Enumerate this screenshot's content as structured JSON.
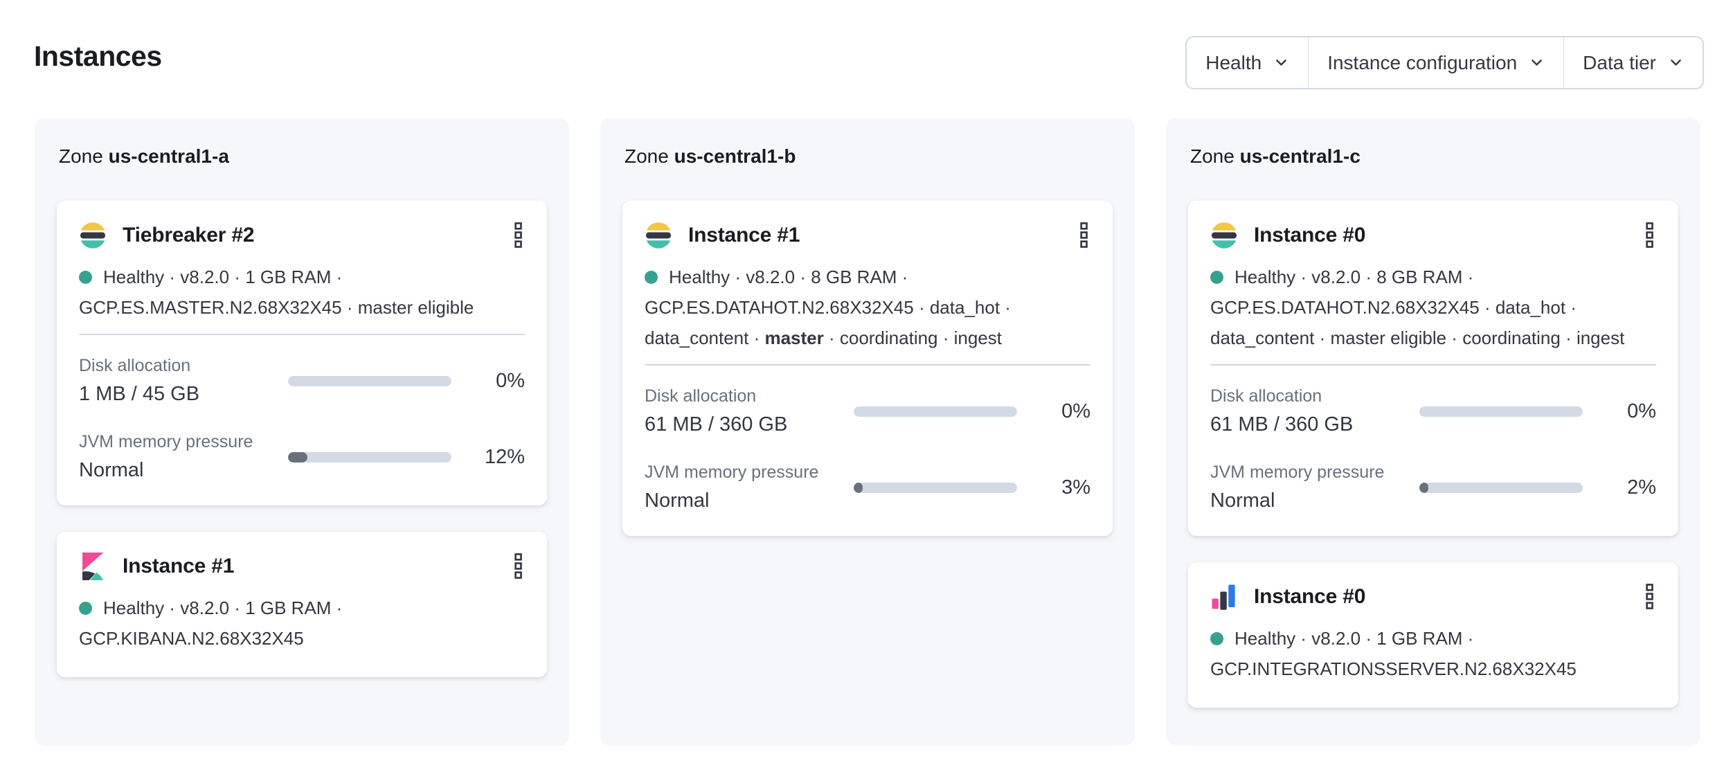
{
  "page": {
    "title": "Instances"
  },
  "filters": [
    {
      "label": "Health"
    },
    {
      "label": "Instance configuration"
    },
    {
      "label": "Data tier"
    }
  ],
  "icons": {
    "filter_dropdown": "chevron-down",
    "card_menu": "boxes-vertical",
    "health_status": "dot"
  },
  "colors": {
    "text_primary": "#1A1C21",
    "text_secondary": "#343741",
    "text_subdued": "#69707D",
    "border": "#D3DAE6",
    "panel_bg": "#F5F7FB",
    "card_bg": "#FFFFFF",
    "healthy_dot": "#37A18F",
    "bar_track": "#D3DAE6",
    "bar_fill": "#69707D",
    "logo_yellow": "#F5C546",
    "logo_dark": "#343741",
    "logo_teal": "#45BFAD",
    "logo_pink": "#EF4C98",
    "logo_blue": "#2D7CE0"
  },
  "zones": [
    {
      "prefix": "Zone",
      "name": "us-central1-a",
      "cards": [
        {
          "product": "elasticsearch",
          "title": "Tiebreaker #2",
          "meta_line1": "Healthy · v8.2.0 · 1 GB RAM ·",
          "meta_line2": "GCP.ES.MASTER.N2.68X32X45 · master eligible",
          "metrics": [
            {
              "label": "Disk allocation",
              "value": "1 MB / 45 GB",
              "percent": 0,
              "percent_label": "0%"
            },
            {
              "label": "JVM memory pressure",
              "value": "Normal",
              "percent": 12,
              "percent_label": "12%"
            }
          ]
        },
        {
          "product": "kibana",
          "title": "Instance #1",
          "meta_line1": "Healthy · v8.2.0 · 1 GB RAM ·",
          "meta_line2": "GCP.KIBANA.N2.68X32X45"
        }
      ]
    },
    {
      "prefix": "Zone",
      "name": "us-central1-b",
      "cards": [
        {
          "product": "elasticsearch",
          "title": "Instance #1",
          "meta_line1": "Healthy · v8.2.0 · 8 GB RAM ·",
          "meta_line2": "GCP.ES.DATAHOT.N2.68X32X45 · data_hot ·",
          "meta_line3_pre": "data_content · ",
          "meta_line3_bold": "master",
          "meta_line3_post": " · coordinating · ingest",
          "metrics": [
            {
              "label": "Disk allocation",
              "value": "61 MB / 360 GB",
              "percent": 0,
              "percent_label": "0%"
            },
            {
              "label": "JVM memory pressure",
              "value": "Normal",
              "percent": 3,
              "percent_label": "3%"
            }
          ]
        }
      ]
    },
    {
      "prefix": "Zone",
      "name": "us-central1-c",
      "cards": [
        {
          "product": "elasticsearch",
          "title": "Instance #0",
          "meta_line1": "Healthy · v8.2.0 · 8 GB RAM ·",
          "meta_line2": "GCP.ES.DATAHOT.N2.68X32X45 · data_hot ·",
          "meta_line3": "data_content · master eligible · coordinating · ingest",
          "metrics": [
            {
              "label": "Disk allocation",
              "value": "61 MB / 360 GB",
              "percent": 0,
              "percent_label": "0%"
            },
            {
              "label": "JVM memory pressure",
              "value": "Normal",
              "percent": 2,
              "percent_label": "2%"
            }
          ]
        },
        {
          "product": "integrations_server",
          "title": "Instance #0",
          "meta_line1": "Healthy · v8.2.0 · 1 GB RAM ·",
          "meta_line2": "GCP.INTEGRATIONSSERVER.N2.68X32X45"
        }
      ]
    }
  ]
}
